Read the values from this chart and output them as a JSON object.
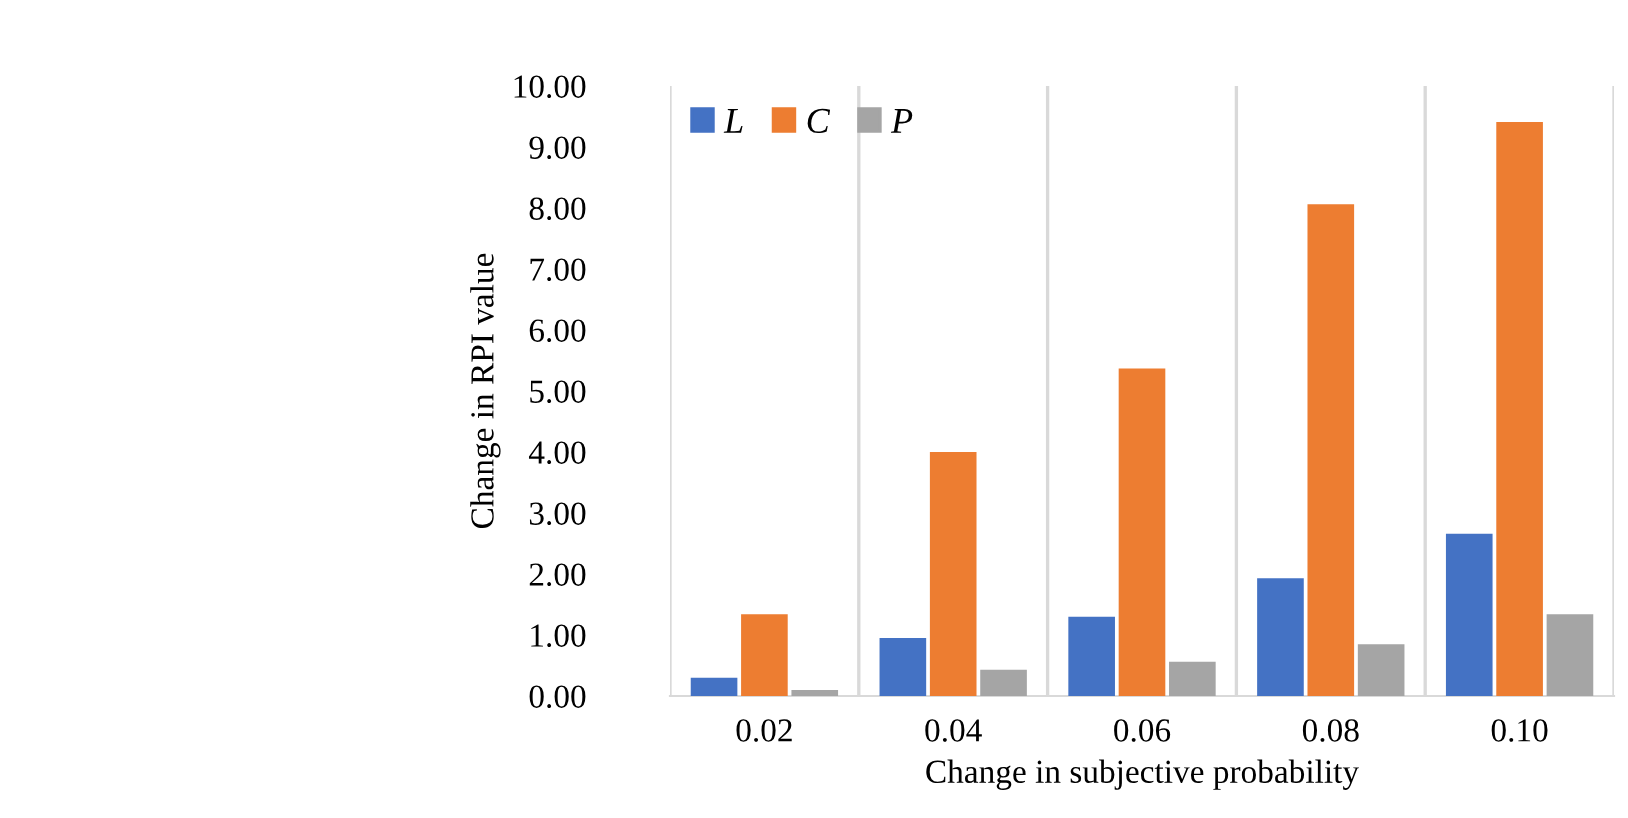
{
  "chart_data": {
    "type": "bar",
    "xlabel": "Change in subjective probability",
    "ylabel": "Change in RPI value",
    "categories": [
      "0.02",
      "0.04",
      "0.06",
      "0.08",
      "0.10"
    ],
    "series": [
      {
        "name": "L",
        "color": "#4472c4",
        "values": [
          0.3,
          0.95,
          1.3,
          1.93,
          2.66
        ]
      },
      {
        "name": "C",
        "color": "#ed7d31",
        "values": [
          1.34,
          4.0,
          5.37,
          8.06,
          9.41
        ]
      },
      {
        "name": "P",
        "color": "#a5a5a5",
        "values": [
          0.1,
          0.43,
          0.56,
          0.85,
          1.34
        ]
      }
    ],
    "ylim": [
      0,
      10
    ],
    "yticks": [
      {
        "value": 0,
        "label": "0.00"
      },
      {
        "value": 1,
        "label": "1.00"
      },
      {
        "value": 2,
        "label": "2.00"
      },
      {
        "value": 3,
        "label": "3.00"
      },
      {
        "value": 4,
        "label": "4.00"
      },
      {
        "value": 5,
        "label": "5.00"
      },
      {
        "value": 6,
        "label": "6.00"
      },
      {
        "value": 7,
        "label": "7.00"
      },
      {
        "value": 8,
        "label": "8.00"
      },
      {
        "value": 9,
        "label": "9.00"
      },
      {
        "value": 10,
        "label": "10.00"
      }
    ],
    "grid": "x",
    "legend": "top left"
  }
}
